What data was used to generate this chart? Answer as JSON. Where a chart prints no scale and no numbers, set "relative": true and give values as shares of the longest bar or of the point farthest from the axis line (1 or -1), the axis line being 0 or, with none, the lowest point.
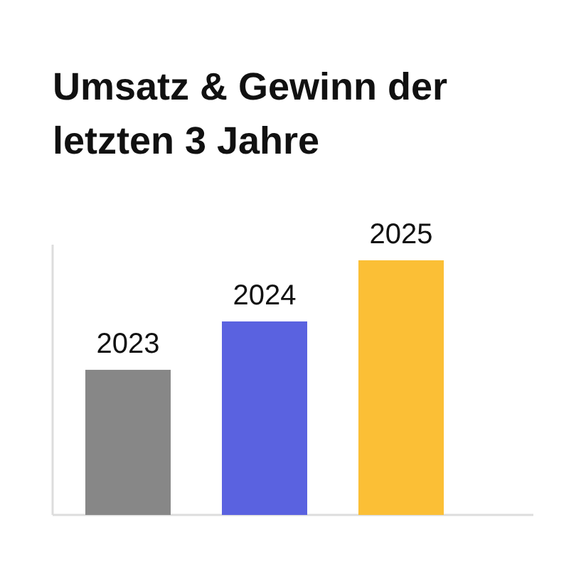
{
  "chart_data": {
    "type": "bar",
    "title": "Umsatz & Gewinn der letzten 3 Jahre",
    "relative": true,
    "categories": [
      "2023",
      "2024",
      "2025"
    ],
    "values": [
      0.57,
      0.76,
      1
    ],
    "colors": [
      "#878787",
      "#5a62e0",
      "#fbbf36"
    ]
  }
}
